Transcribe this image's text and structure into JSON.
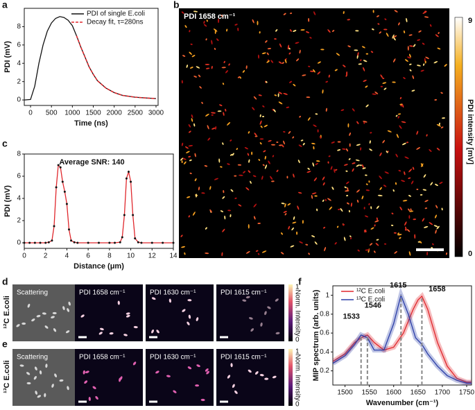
{
  "panel_letters": [
    "a",
    "b",
    "c",
    "d",
    "e",
    "f"
  ],
  "chart_data": [
    {
      "type": "line",
      "xlabel": "Time (ns)",
      "ylabel": "PDI (mV)",
      "xlim": [
        -150,
        3050
      ],
      "xticks": [
        0,
        500,
        1000,
        1500,
        2000,
        2500,
        3000
      ],
      "ylim": [
        -0.6,
        10
      ],
      "yticks": [
        0,
        2,
        4,
        6,
        8
      ],
      "legend": "upper right",
      "series": [
        {
          "name": "PDI of single E.coli",
          "color": "#111111",
          "x": [
            -150,
            0,
            100,
            200,
            300,
            400,
            500,
            600,
            700,
            800,
            900,
            1000,
            1100,
            1200,
            1300,
            1400,
            1500,
            1600,
            1800,
            2000,
            2200,
            2500,
            2800,
            3000
          ],
          "values": [
            0,
            0.05,
            1.5,
            4,
            6,
            7.5,
            8.4,
            8.9,
            9.1,
            9.0,
            8.7,
            8.1,
            7,
            5.8,
            4.7,
            3.6,
            2.8,
            2.1,
            1.3,
            0.8,
            0.5,
            0.3,
            0.2,
            0.15
          ]
        },
        {
          "name": "Decay fit, τ=280ns",
          "color": "#e0262b",
          "dashed": true,
          "x": [
            1100,
            1200,
            1300,
            1400,
            1500,
            1600,
            1800,
            2000,
            2200,
            2500,
            2800,
            3000
          ],
          "values": [
            7,
            5.8,
            4.7,
            3.6,
            2.8,
            2.1,
            1.3,
            0.8,
            0.5,
            0.3,
            0.2,
            0.15
          ]
        }
      ]
    },
    {
      "type": "line",
      "title": "Average SNR: 140",
      "xlabel": "Distance (μm)",
      "ylabel": "PDI (mV)",
      "xlim": [
        0,
        14
      ],
      "xticks": [
        0,
        2,
        4,
        6,
        8,
        10,
        12,
        14
      ],
      "ylim": [
        -0.5,
        8
      ],
      "yticks": [
        0,
        2,
        4,
        6,
        8
      ],
      "series": [
        {
          "color": "#e0262b",
          "marker_color": "#111111",
          "x": [
            0,
            0.5,
            1,
            1.5,
            2,
            2.3,
            2.6,
            2.8,
            3.0,
            3.2,
            3.4,
            3.6,
            3.8,
            4.0,
            4.2,
            4.4,
            4.7,
            5,
            6,
            7,
            8,
            8.5,
            9,
            9.2,
            9.4,
            9.6,
            9.8,
            10.0,
            10.2,
            10.4,
            10.7,
            11,
            12,
            13,
            14
          ],
          "values": [
            0,
            0,
            0,
            0,
            0,
            0.05,
            0.2,
            1.5,
            5,
            7,
            6.8,
            5.5,
            4.6,
            3.5,
            1.2,
            0.2,
            0.05,
            0,
            0,
            0,
            0,
            0,
            0.05,
            0.5,
            2.5,
            5.8,
            6.4,
            5.5,
            2.5,
            0.4,
            0.05,
            0,
            0,
            0,
            0
          ]
        }
      ]
    },
    {
      "type": "line",
      "xlabel": "Wavenumber (cm⁻¹)",
      "ylabel": "MIP spectrum (arb. units)",
      "xlim": [
        1475,
        1760
      ],
      "xticks": [
        1500,
        1550,
        1600,
        1650,
        1700,
        1750
      ],
      "ylim": [
        0.05,
        1.1
      ],
      "yticks": [
        0.2,
        0.4,
        0.6,
        0.8,
        1.0
      ],
      "legend": "upper left",
      "peaks": [
        1533,
        1546,
        1615,
        1658
      ],
      "series": [
        {
          "name": "¹²C E.coli",
          "color": "#e0262b",
          "band": true,
          "x": [
            1475,
            1500,
            1520,
            1533,
            1546,
            1560,
            1580,
            1600,
            1620,
            1640,
            1650,
            1658,
            1670,
            1690,
            1710,
            1730,
            1750,
            1760
          ],
          "values": [
            0.3,
            0.38,
            0.5,
            0.55,
            0.58,
            0.5,
            0.42,
            0.45,
            0.6,
            0.85,
            0.95,
            0.99,
            0.85,
            0.5,
            0.25,
            0.12,
            0.08,
            0.08
          ]
        },
        {
          "name": "¹³C E.coli",
          "color": "#2b3ea8",
          "band": true,
          "x": [
            1475,
            1500,
            1520,
            1533,
            1546,
            1560,
            1580,
            1600,
            1615,
            1630,
            1645,
            1658,
            1670,
            1690,
            1710,
            1730,
            1750,
            1760
          ],
          "values": [
            0.28,
            0.36,
            0.48,
            0.58,
            0.55,
            0.42,
            0.42,
            0.7,
            1.0,
            0.8,
            0.55,
            0.48,
            0.38,
            0.25,
            0.15,
            0.1,
            0.07,
            0.07
          ]
        }
      ]
    }
  ],
  "image_b": {
    "label": "PDI 1658 cm⁻¹",
    "colorbar_label": "PDI intensity [mV]",
    "colorbar_ticks": [
      9,
      0
    ]
  },
  "image_rows": {
    "tiles": [
      "Scattering",
      "PDI 1658 cm⁻¹",
      "PDI 1630 cm⁻¹",
      "PDI 1615 cm⁻¹"
    ],
    "rows": [
      "¹²C E.coli",
      "¹³C E.coli"
    ],
    "colorbar_label": "Norm. Intensity",
    "colorbar_ticks": [
      1,
      0
    ]
  }
}
